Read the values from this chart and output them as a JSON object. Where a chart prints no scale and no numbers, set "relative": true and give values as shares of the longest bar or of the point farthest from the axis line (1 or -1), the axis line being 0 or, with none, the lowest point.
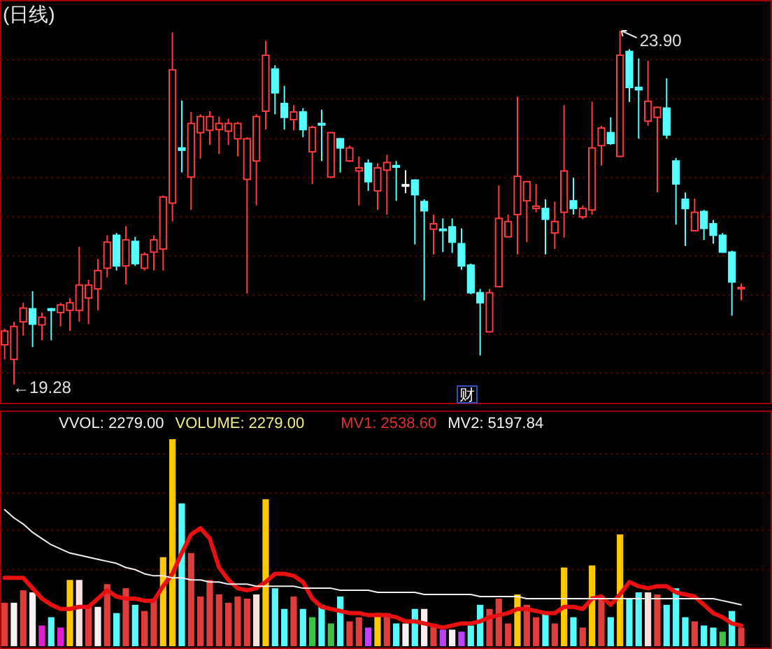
{
  "chart_data": [
    {
      "type": "candlestick",
      "title": "(日线)",
      "ref_lines": [
        {
          "axis": "y",
          "value": 23.52,
          "color": "#700000",
          "line_style": "dotted"
        },
        {
          "axis": "y",
          "value": 23.01,
          "color": "#700000",
          "line_style": "dotted"
        },
        {
          "axis": "y",
          "value": 22.49,
          "color": "#700000",
          "line_style": "dotted"
        },
        {
          "axis": "y",
          "value": 21.98,
          "color": "#700000",
          "line_style": "dotted"
        },
        {
          "axis": "y",
          "value": 21.47,
          "color": "#700000",
          "line_style": "dotted"
        },
        {
          "axis": "y",
          "value": 20.96,
          "color": "#700000",
          "line_style": "dotted"
        },
        {
          "axis": "y",
          "value": 20.45,
          "color": "#700000",
          "line_style": "dotted"
        },
        {
          "axis": "y",
          "value": 19.94,
          "color": "#700000",
          "line_style": "dotted"
        },
        {
          "axis": "y",
          "value": 19.43,
          "color": "#700000",
          "line_style": "dotted"
        }
      ],
      "categories": [
        null,
        null,
        null,
        null,
        null,
        null,
        null,
        null,
        null,
        null,
        null,
        null,
        null,
        null,
        null,
        null,
        null,
        null,
        null,
        null,
        null,
        null,
        null,
        null,
        null,
        null,
        null,
        null,
        null,
        null,
        null,
        null,
        null,
        null,
        null,
        null,
        null,
        null,
        null,
        null,
        null,
        null,
        null,
        null,
        null,
        null,
        null,
        null,
        null,
        null,
        null,
        null,
        null,
        null,
        null,
        null,
        null,
        null,
        null,
        null,
        null,
        null,
        null,
        null,
        null,
        null,
        null,
        null,
        null,
        null,
        null,
        null,
        null,
        null,
        null,
        null,
        null,
        null,
        null,
        null
      ],
      "ohlc": [
        [
          19.8,
          20.01,
          19.61,
          19.98
        ],
        [
          19.61,
          20.1,
          19.28,
          20.04
        ],
        [
          20.1,
          20.35,
          19.92,
          20.28
        ],
        [
          20.27,
          20.5,
          19.77,
          20.07
        ],
        [
          20.06,
          20.22,
          19.86,
          20.16
        ],
        [
          20.27,
          20.28,
          19.86,
          20.25
        ],
        [
          20.22,
          20.35,
          20.04,
          20.32
        ],
        [
          20.25,
          20.41,
          19.98,
          20.35
        ],
        [
          20.25,
          21.08,
          20.1,
          20.58
        ],
        [
          20.41,
          20.65,
          20.07,
          20.58
        ],
        [
          20.53,
          20.92,
          20.25,
          20.77
        ],
        [
          20.8,
          21.23,
          20.68,
          21.14
        ],
        [
          21.23,
          21.26,
          20.77,
          20.83
        ],
        [
          20.83,
          21.35,
          20.59,
          21.17
        ],
        [
          21.15,
          21.21,
          20.83,
          20.86
        ],
        [
          20.8,
          21.01,
          20.77,
          20.98
        ],
        [
          21.01,
          21.23,
          20.77,
          21.17
        ],
        [
          21.05,
          21.75,
          20.77,
          21.73
        ],
        [
          21.65,
          23.88,
          21.41,
          23.39
        ],
        [
          22.37,
          22.99,
          22.05,
          22.34
        ],
        [
          21.99,
          22.84,
          21.56,
          22.69
        ],
        [
          22.57,
          22.81,
          22.23,
          22.78
        ],
        [
          22.6,
          22.85,
          22.41,
          22.78
        ],
        [
          22.61,
          22.78,
          22.29,
          22.69
        ],
        [
          22.59,
          22.75,
          22.41,
          22.69
        ],
        [
          22.49,
          22.71,
          22.26,
          22.69
        ],
        [
          21.96,
          22.51,
          20.47,
          22.49
        ],
        [
          22.2,
          22.81,
          21.62,
          22.78
        ],
        [
          22.85,
          23.77,
          22.61,
          23.58
        ],
        [
          23.4,
          23.45,
          22.81,
          23.09
        ],
        [
          22.95,
          23.18,
          22.61,
          22.77
        ],
        [
          22.74,
          22.93,
          22.6,
          22.84
        ],
        [
          22.84,
          22.89,
          22.51,
          22.61
        ],
        [
          22.32,
          22.66,
          21.9,
          22.64
        ],
        [
          22.69,
          22.87,
          22.2,
          22.67
        ],
        [
          21.99,
          22.58,
          21.98,
          22.57
        ],
        [
          22.49,
          22.5,
          22.05,
          22.37
        ],
        [
          22.2,
          22.4,
          22.19,
          22.37
        ],
        [
          22.07,
          22.26,
          21.62,
          22.11
        ],
        [
          22.17,
          22.22,
          21.81,
          21.93
        ],
        [
          21.81,
          22.17,
          21.56,
          22.11
        ],
        [
          22.08,
          22.28,
          21.5,
          22.18
        ],
        [
          22.14,
          22.2,
          21.68,
          22.12
        ],
        [
          21.89,
          22.08,
          21.78,
          21.89
        ],
        [
          21.95,
          21.96,
          21.11,
          21.76
        ],
        [
          21.67,
          21.7,
          20.38,
          21.55
        ],
        [
          21.31,
          21.5,
          20.98,
          21.38
        ],
        [
          21.31,
          21.45,
          21.01,
          21.3
        ],
        [
          21.34,
          21.45,
          21.0,
          21.14
        ],
        [
          21.12,
          21.32,
          20.78,
          20.83
        ],
        [
          20.84,
          20.86,
          20.46,
          20.48
        ],
        [
          20.48,
          20.53,
          19.66,
          20.35
        ],
        [
          19.97,
          20.53,
          19.96,
          20.48
        ],
        [
          20.56,
          21.88,
          20.55,
          21.45
        ],
        [
          21.21,
          21.5,
          21.2,
          21.41
        ],
        [
          21.5,
          23.04,
          20.98,
          22.0
        ],
        [
          21.68,
          21.94,
          21.14,
          21.93
        ],
        [
          21.58,
          21.9,
          21.53,
          21.61
        ],
        [
          21.58,
          21.7,
          20.98,
          21.44
        ],
        [
          21.26,
          21.67,
          21.05,
          21.41
        ],
        [
          21.53,
          22.93,
          21.2,
          22.07
        ],
        [
          21.68,
          21.98,
          21.5,
          21.58
        ],
        [
          21.47,
          21.62,
          21.44,
          21.58
        ],
        [
          21.56,
          22.97,
          21.5,
          22.37
        ],
        [
          22.4,
          22.66,
          22.14,
          22.63
        ],
        [
          22.57,
          22.77,
          22.41,
          22.43
        ],
        [
          22.26,
          23.9,
          22.25,
          23.58
        ],
        [
          23.63,
          23.66,
          22.97,
          23.16
        ],
        [
          23.16,
          23.54,
          22.49,
          23.13
        ],
        [
          22.72,
          23.51,
          22.66,
          22.98
        ],
        [
          22.77,
          22.91,
          21.79,
          22.9
        ],
        [
          22.89,
          23.28,
          22.49,
          22.54
        ],
        [
          22.2,
          22.24,
          21.37,
          21.9
        ],
        [
          21.7,
          21.79,
          21.09,
          21.58
        ],
        [
          21.29,
          21.71,
          21.28,
          21.53
        ],
        [
          21.54,
          21.56,
          21.17,
          21.32
        ],
        [
          21.38,
          21.43,
          21.12,
          21.23
        ],
        [
          21.23,
          21.26,
          21.0,
          21.01
        ],
        [
          21.01,
          21.03,
          20.18,
          20.62
        ],
        [
          20.54,
          20.6,
          20.38,
          20.55
        ]
      ],
      "annotations": [
        "←19.28",
        "23.90",
        "财"
      ]
    },
    {
      "type": "bar",
      "relative": true,
      "ref_lines": [
        {
          "axis": "y",
          "value": 0.93,
          "color": "#700000",
          "line_style": "dotted"
        },
        {
          "axis": "y",
          "value": 0.74,
          "color": "#700000",
          "line_style": "dotted"
        },
        {
          "axis": "y",
          "value": 0.56,
          "color": "#700000",
          "line_style": "dotted"
        },
        {
          "axis": "y",
          "value": 0.37,
          "color": "#700000",
          "line_style": "dotted"
        }
      ],
      "categories": [
        null,
        null,
        null,
        null,
        null,
        null,
        null,
        null,
        null,
        null,
        null,
        null,
        null,
        null,
        null,
        null,
        null,
        null,
        null,
        null,
        null,
        null,
        null,
        null,
        null,
        null,
        null,
        null,
        null,
        null,
        null,
        null,
        null,
        null,
        null,
        null,
        null,
        null,
        null,
        null,
        null,
        null,
        null,
        null,
        null,
        null,
        null,
        null,
        null,
        null,
        null,
        null,
        null,
        null,
        null,
        null,
        null,
        null,
        null,
        null,
        null,
        null,
        null,
        null,
        null,
        null,
        null,
        null,
        null,
        null,
        null,
        null,
        null,
        null,
        null,
        null,
        null,
        null,
        null,
        null
      ],
      "series": [
        {
          "type": "bar",
          "values": [
            0.21,
            0.21,
            0.27,
            0.26,
            0.1,
            0.14,
            0.09,
            0.32,
            0.32,
            0.19,
            0.19,
            0.3,
            0.16,
            0.28,
            0.2,
            0.17,
            0.23,
            0.43,
            1,
            0.69,
            0.45,
            0.24,
            0.32,
            0.25,
            0.21,
            0.24,
            0.23,
            0.25,
            0.71,
            0.28,
            0.18,
            0.24,
            0.18,
            0.14,
            0.2,
            0.11,
            0.24,
            0.12,
            0.14,
            0.09,
            0.16,
            0.16,
            0.11,
            0.11,
            0.18,
            0.18,
            0.1,
            0.08,
            0.08,
            0.07,
            0.1,
            0.2,
            0.18,
            0.23,
            0.11,
            0.25,
            0.2,
            0.14,
            0.16,
            0.11,
            0.38,
            0.14,
            0.09,
            0.39,
            0.24,
            0.14,
            0.54,
            0.23,
            0.26,
            0.26,
            0.25,
            0.2,
            0.28,
            0.14,
            0.12,
            0.1,
            0.09,
            0.07,
            0.17,
            0.09
          ],
          "colors": [
            "#e03c3c",
            "#f8f0f0",
            "#e03c3c",
            "#f8f0f0",
            "#e020d0",
            "#54fcfc",
            "#e020d0",
            "#ffc800",
            "#ffe0e0",
            "#e03c3c",
            "#f8f0f0",
            "#e03c3c",
            "#54fcfc",
            "#e03c3c",
            "#54fcfc",
            "#e03c3c",
            "#e03c3c",
            "#ffc800",
            "#ffc800",
            "#54fcfc",
            "#e03c3c",
            "#e03c3c",
            "#e03c3c",
            "#e03c3c",
            "#e03c3c",
            "#e03c3c",
            "#e03c3c",
            "#ffe0e0",
            "#ffc800",
            "#54fcfc",
            "#54fcfc",
            "#e03c3c",
            "#54fcfc",
            "#40c040",
            "#54fcfc",
            "#40c040",
            "#54fcfc",
            "#e03c3c",
            "#e03c3c",
            "#c040ff",
            "#ffc800",
            "#e03c3c",
            "#54fcfc",
            "#f8f0f0",
            "#54fcfc",
            "#f8f0f0",
            "#e03c3c",
            "#c040ff",
            "#f8f0f0",
            "#c040ff",
            "#54fcfc",
            "#54fcfc",
            "#e03c3c",
            "#e03c3c",
            "#e03c3c",
            "#ffc800",
            "#e03c3c",
            "#e03c3c",
            "#54fcfc",
            "#e03c3c",
            "#ffc800",
            "#54fcfc",
            "#e03c3c",
            "#ffc800",
            "#e03c3c",
            "#54fcfc",
            "#ffc800",
            "#54fcfc",
            "#54fcfc",
            "#ffe0e0",
            "#e03c3c",
            "#54fcfc",
            "#54fcfc",
            "#54fcfc",
            "#e03c3c",
            "#54fcfc",
            "#54fcfc",
            "#40c040",
            "#54fcfc",
            "#e03c3c"
          ]
        },
        {
          "type": "line",
          "color": "#e81010",
          "values": [
            0.33,
            0.33,
            0.33,
            0.28,
            0.23,
            0.2,
            0.18,
            0.18,
            0.19,
            0.19,
            0.23,
            0.27,
            0.24,
            0.23,
            0.23,
            0.22,
            0.22,
            0.29,
            0.35,
            0.45,
            0.54,
            0.57,
            0.52,
            0.38,
            0.32,
            0.28,
            0.27,
            0.28,
            0.31,
            0.35,
            0.35,
            0.34,
            0.31,
            0.23,
            0.19,
            0.18,
            0.17,
            0.16,
            0.16,
            0.15,
            0.15,
            0.15,
            0.14,
            0.12,
            0.12,
            0.11,
            0.1,
            0.09,
            0.1,
            0.11,
            0.11,
            0.12,
            0.14,
            0.15,
            0.16,
            0.18,
            0.18,
            0.17,
            0.16,
            0.16,
            0.19,
            0.19,
            0.18,
            0.23,
            0.24,
            0.2,
            0.25,
            0.31,
            0.29,
            0.28,
            0.29,
            0.29,
            0.26,
            0.25,
            0.24,
            0.2,
            0.16,
            0.14,
            0.11,
            0.1
          ]
        },
        {
          "type": "line",
          "color": "#f0f0f0",
          "values": [
            0.66,
            0.62,
            0.59,
            0.55,
            0.52,
            0.49,
            0.47,
            0.45,
            0.44,
            0.43,
            0.42,
            0.41,
            0.4,
            0.38,
            0.37,
            0.35,
            0.34,
            0.34,
            0.33,
            0.33,
            0.32,
            0.32,
            0.31,
            0.31,
            0.3,
            0.3,
            0.3,
            0.29,
            0.29,
            0.29,
            0.29,
            0.29,
            0.28,
            0.28,
            0.28,
            0.28,
            0.27,
            0.27,
            0.27,
            0.27,
            0.26,
            0.26,
            0.26,
            0.26,
            0.26,
            0.25,
            0.25,
            0.25,
            0.25,
            0.25,
            0.25,
            0.24,
            0.24,
            0.24,
            0.24,
            0.24,
            0.23,
            0.23,
            0.23,
            0.23,
            0.23,
            0.23,
            0.23,
            0.23,
            0.23,
            0.23,
            0.23,
            0.23,
            0.23,
            0.23,
            0.23,
            0.23,
            0.23,
            0.23,
            0.23,
            0.23,
            0.23,
            0.22,
            0.21,
            0.2
          ]
        }
      ],
      "annotations": [
        "VVOL: 2279.00",
        "VOLUME: 2279.00",
        "MV1: 2538.60",
        "MV2: 5197.84"
      ]
    }
  ]
}
